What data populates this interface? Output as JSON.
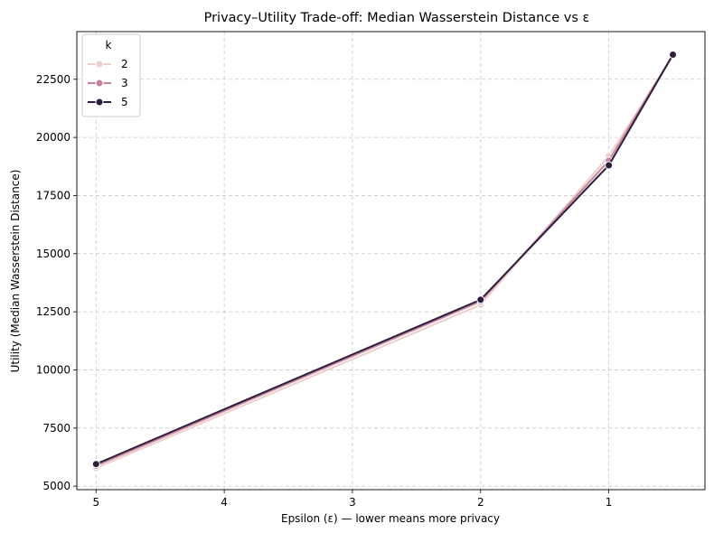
{
  "chart_data": {
    "type": "line",
    "title": "Privacy–Utility Trade-off: Median Wasserstein Distance vs ε",
    "xlabel": "Epsilon (ε) — lower means more privacy",
    "ylabel": "Utility (Median Wasserstein Distance)",
    "x_reversed": true,
    "xlim": [
      5.15,
      0.25
    ],
    "ylim": [
      4850,
      24550
    ],
    "x_ticks": [
      5,
      4,
      3,
      2,
      1
    ],
    "x_tick_labels": [
      "5",
      "4",
      "3",
      "2",
      "1"
    ],
    "y_ticks": [
      5000,
      7500,
      10000,
      12500,
      15000,
      17500,
      20000,
      22500
    ],
    "y_tick_labels": [
      "5000",
      "7500",
      "10000",
      "12500",
      "15000",
      "17500",
      "20000",
      "22500"
    ],
    "grid": true,
    "legend": {
      "title": "k",
      "placement": "top-left"
    },
    "x": [
      5,
      2,
      1,
      0.5
    ],
    "series": [
      {
        "name": "2",
        "color": "#EDCFCA",
        "values": [
          5780,
          12800,
          19200,
          23500
        ]
      },
      {
        "name": "3",
        "color": "#C7849E",
        "values": [
          5880,
          12950,
          19000,
          23550
        ]
      },
      {
        "name": "5",
        "color": "#2D1E3E",
        "values": [
          5950,
          13020,
          18800,
          23560
        ]
      }
    ]
  }
}
